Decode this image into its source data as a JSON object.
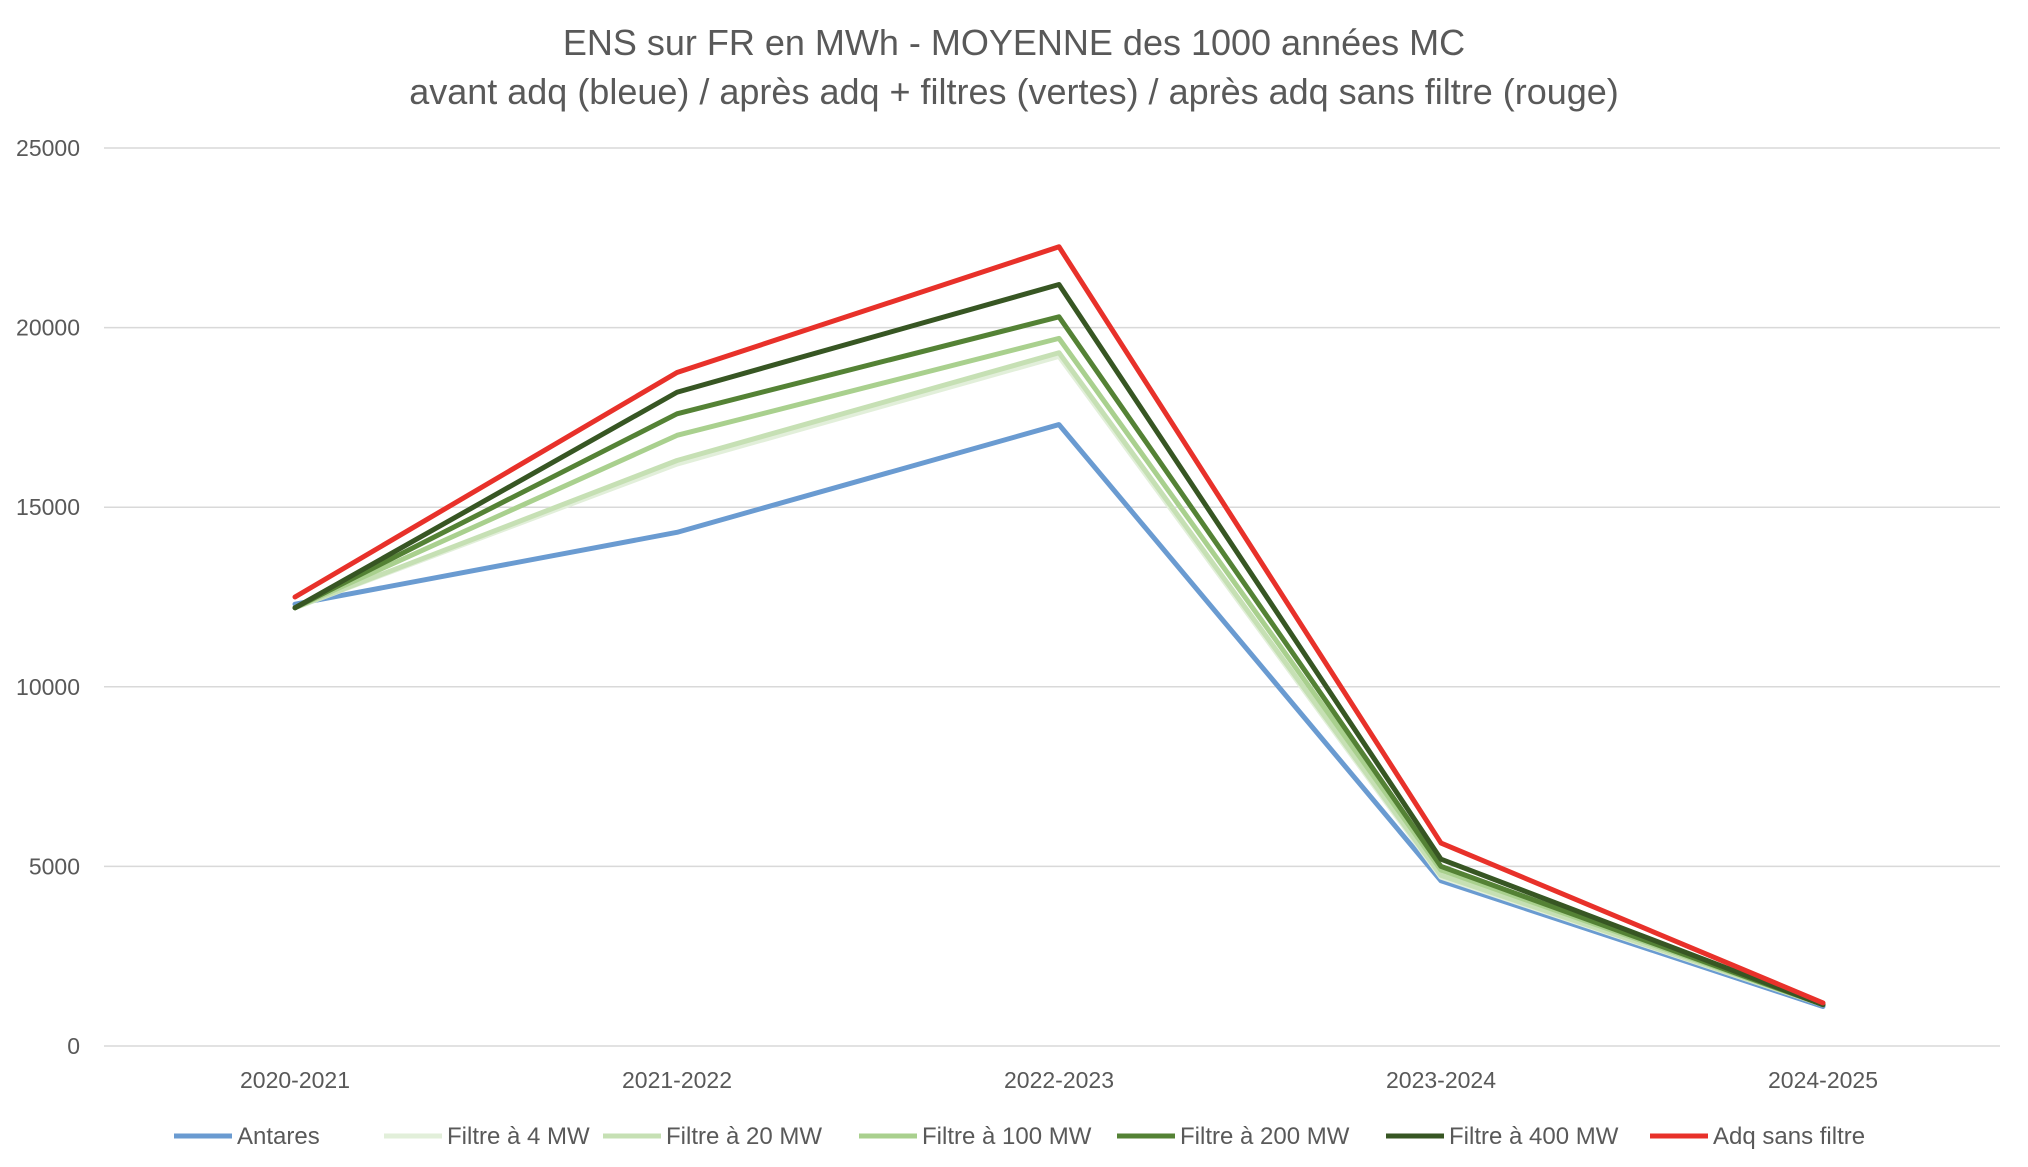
{
  "chart_data": {
    "type": "line",
    "title": "ENS sur FR en MWh - MOYENNE des 1000 années MC",
    "subtitle": "avant adq (bleue) / après adq + filtres (vertes) / après adq sans filtre (rouge)",
    "xlabel": "",
    "ylabel": "",
    "categories": [
      "2020-2021",
      "2021-2022",
      "2022-2023",
      "2023-2024",
      "2024-2025"
    ],
    "ylim": [
      0,
      25000
    ],
    "yticks": [
      "0",
      "5000",
      "10000",
      "15000",
      "20000",
      "25000"
    ],
    "grid": true,
    "legend_position": "bottom",
    "series": [
      {
        "name": "Antares",
        "color": "#6a9bd1",
        "values": [
          12300,
          14300,
          17300,
          4600,
          1100
        ]
      },
      {
        "name": "Filtre à 4 MW",
        "color": "#e2efda",
        "values": [
          12200,
          16200,
          19200,
          4700,
          1150
        ]
      },
      {
        "name": "Filtre à 20 MW",
        "color": "#c6e0b4",
        "values": [
          12200,
          16300,
          19300,
          4750,
          1150
        ]
      },
      {
        "name": "Filtre à 100 MW",
        "color": "#a9d08e",
        "values": [
          12200,
          17000,
          19700,
          4900,
          1150
        ]
      },
      {
        "name": "Filtre à 200 MW",
        "color": "#548235",
        "values": [
          12200,
          17600,
          20300,
          5000,
          1150
        ]
      },
      {
        "name": "Filtre à 400 MW",
        "color": "#375623",
        "values": [
          12200,
          18200,
          21200,
          5200,
          1150
        ]
      },
      {
        "name": "Adq sans filtre",
        "color": "#e8312a",
        "values": [
          12500,
          18750,
          22250,
          5650,
          1200
        ]
      }
    ]
  }
}
